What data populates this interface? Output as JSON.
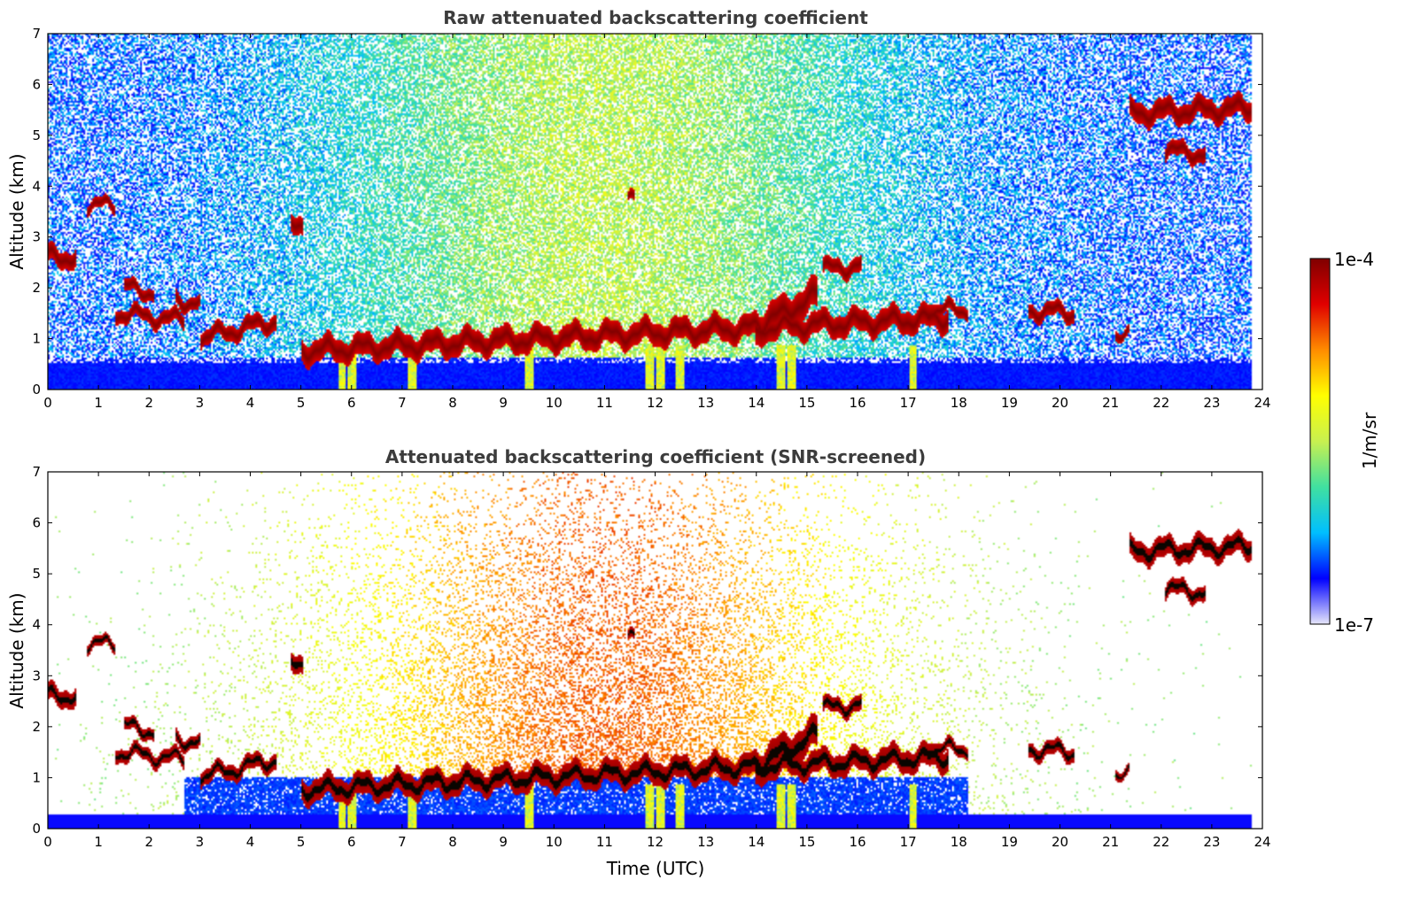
{
  "chart_data": [
    {
      "type": "heatmap",
      "title": "Raw attenuated backscattering coefficient",
      "xlabel": "",
      "ylabel": "Altitude (km)",
      "xlim": [
        0,
        24
      ],
      "ylim": [
        0,
        7
      ],
      "xticks": [
        "0",
        "1",
        "2",
        "3",
        "4",
        "5",
        "6",
        "7",
        "8",
        "9",
        "10",
        "11",
        "12",
        "13",
        "14",
        "15",
        "16",
        "17",
        "18",
        "19",
        "20",
        "21",
        "22",
        "23",
        "24"
      ],
      "yticks": [
        "0",
        "1",
        "2",
        "3",
        "4",
        "5",
        "6",
        "7"
      ],
      "screened": false
    },
    {
      "type": "heatmap",
      "title": "Attenuated backscattering coefficient (SNR-screened)",
      "xlabel": "Time (UTC)",
      "ylabel": "Altitude (km)",
      "xlim": [
        0,
        24
      ],
      "ylim": [
        0,
        7
      ],
      "xticks": [
        "0",
        "1",
        "2",
        "3",
        "4",
        "5",
        "6",
        "7",
        "8",
        "9",
        "10",
        "11",
        "12",
        "13",
        "14",
        "15",
        "16",
        "17",
        "18",
        "19",
        "20",
        "21",
        "22",
        "23",
        "24"
      ],
      "yticks": [
        "0",
        "1",
        "2",
        "3",
        "4",
        "5",
        "6",
        "7"
      ],
      "screened": true
    }
  ],
  "colorbar": {
    "label": "1/m/sr",
    "max_label": "1e-4",
    "min_label": "1e-7",
    "scale": "log",
    "colormap": [
      "#e6e6fa",
      "#0000ff",
      "#00bfff",
      "#40e0a0",
      "#c8f050",
      "#ffff00",
      "#ff8c00",
      "#e00000",
      "#800000"
    ]
  },
  "cloud_layers": [
    {
      "t0": 0.0,
      "t1": 0.55,
      "h0": 2.6,
      "h1": 2.6,
      "w": 0.17
    },
    {
      "t0": 0.75,
      "t1": 1.3,
      "h0": 3.62,
      "h1": 3.62,
      "w": 0.1
    },
    {
      "t0": 1.3,
      "t1": 2.7,
      "h0": 1.5,
      "h1": 1.35,
      "w": 0.13
    },
    {
      "t0": 1.5,
      "t1": 2.1,
      "h0": 2.0,
      "h1": 1.9,
      "w": 0.12
    },
    {
      "t0": 2.5,
      "t1": 3.0,
      "h0": 1.75,
      "h1": 1.7,
      "w": 0.13
    },
    {
      "t0": 4.8,
      "t1": 5.05,
      "h0": 3.25,
      "h1": 3.3,
      "w": 0.18
    },
    {
      "t0": 3.0,
      "t1": 4.5,
      "h0": 1.0,
      "h1": 1.35,
      "w": 0.15
    },
    {
      "t0": 5.0,
      "t1": 17.8,
      "h0": 0.75,
      "h1": 1.4,
      "w": 0.22
    },
    {
      "t0": 14.0,
      "t1": 15.2,
      "h0": 1.2,
      "h1": 1.85,
      "w": 0.3
    },
    {
      "t0": 15.3,
      "t1": 16.1,
      "h0": 2.35,
      "h1": 2.45,
      "w": 0.15
    },
    {
      "t0": 17.4,
      "t1": 18.2,
      "h0": 1.55,
      "h1": 1.55,
      "w": 0.12
    },
    {
      "t0": 19.4,
      "t1": 20.3,
      "h0": 1.55,
      "h1": 1.5,
      "w": 0.14
    },
    {
      "t0": 21.1,
      "t1": 21.4,
      "h0": 1.1,
      "h1": 1.05,
      "w": 0.1
    },
    {
      "t0": 21.4,
      "t1": 23.8,
      "h0": 5.45,
      "h1": 5.55,
      "w": 0.2
    },
    {
      "t0": 22.1,
      "t1": 22.9,
      "h0": 4.7,
      "h1": 4.65,
      "w": 0.15
    },
    {
      "t0": 11.45,
      "t1": 11.6,
      "h0": 3.7,
      "h1": 3.7,
      "w": 0.1
    }
  ],
  "plumes": [
    5.8,
    6.0,
    7.2,
    9.5,
    11.9,
    12.1,
    12.5,
    14.5,
    14.7,
    17.1
  ]
}
